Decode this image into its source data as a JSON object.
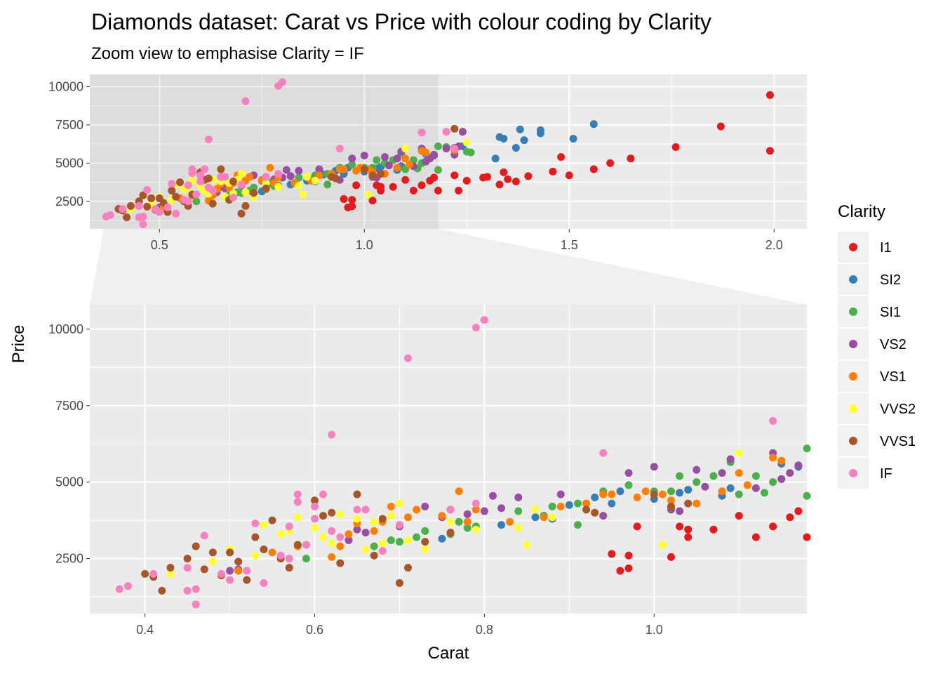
{
  "chart_data": {
    "type": "scatter",
    "title": "Diamonds dataset: Carat vs Price with colour coding by Clarity",
    "subtitle": "Zoom view to emphasise Clarity = IF",
    "xlabel": "Carat",
    "ylabel": "Price",
    "grid": true,
    "legend": {
      "title": "Clarity",
      "position": "right"
    },
    "overview": {
      "xlim": [
        0.33,
        2.08
      ],
      "ylim": [
        700,
        10800
      ],
      "xticks": [
        "0.5",
        "1.0",
        "1.5",
        "2.0"
      ],
      "yticks": [
        "2500",
        "5000",
        "7500",
        "10000"
      ],
      "zoom_region": {
        "x": [
          0.33,
          1.18
        ],
        "y": [
          700,
          10800
        ]
      }
    },
    "zoom": {
      "xlim": [
        0.335,
        1.18
      ],
      "ylim": [
        700,
        10800
      ],
      "xticks": [
        "0.4",
        "0.6",
        "0.8",
        "1.0"
      ],
      "yticks": [
        "2500",
        "5000",
        "7500",
        "10000"
      ]
    },
    "series": [
      {
        "name": "I1",
        "color": "#e41a1c",
        "points": [
          [
            0.95,
            2650
          ],
          [
            0.96,
            2100
          ],
          [
            0.97,
            2600
          ],
          [
            0.98,
            3550
          ],
          [
            0.97,
            2180
          ],
          [
            1.02,
            2550
          ],
          [
            1.03,
            3550
          ],
          [
            1.04,
            3450
          ],
          [
            1.04,
            3200
          ],
          [
            1.07,
            3450
          ],
          [
            1.1,
            3900
          ],
          [
            1.12,
            3200
          ],
          [
            1.14,
            3550
          ],
          [
            1.16,
            3850
          ],
          [
            1.17,
            4050
          ],
          [
            1.18,
            3200
          ],
          [
            1.22,
            4200
          ],
          [
            1.23,
            3200
          ],
          [
            1.25,
            3850
          ],
          [
            1.29,
            4050
          ],
          [
            1.3,
            4100
          ],
          [
            1.33,
            3600
          ],
          [
            1.34,
            4400
          ],
          [
            1.35,
            3950
          ],
          [
            1.37,
            3800
          ],
          [
            1.4,
            4150
          ],
          [
            1.46,
            4450
          ],
          [
            1.48,
            5400
          ],
          [
            1.5,
            4200
          ],
          [
            1.56,
            4600
          ],
          [
            1.6,
            5000
          ],
          [
            1.65,
            5300
          ],
          [
            1.76,
            6050
          ],
          [
            1.87,
            7400
          ],
          [
            1.99,
            9450
          ],
          [
            1.99,
            5800
          ]
        ]
      },
      {
        "name": "SI2",
        "color": "#377eb8",
        "points": [
          [
            0.75,
            3150
          ],
          [
            0.82,
            3600
          ],
          [
            0.86,
            3850
          ],
          [
            0.87,
            3900
          ],
          [
            0.88,
            3800
          ],
          [
            0.9,
            4250
          ],
          [
            0.92,
            4300
          ],
          [
            0.93,
            4500
          ],
          [
            0.95,
            4300
          ],
          [
            0.96,
            4700
          ],
          [
            1.0,
            4450
          ],
          [
            1.02,
            4200
          ],
          [
            1.03,
            4650
          ],
          [
            1.04,
            4750
          ],
          [
            1.08,
            4550
          ],
          [
            1.09,
            4800
          ],
          [
            1.15,
            5600
          ],
          [
            1.17,
            5500
          ],
          [
            1.22,
            6000
          ],
          [
            1.24,
            6100
          ],
          [
            1.32,
            5300
          ],
          [
            1.33,
            6700
          ],
          [
            1.34,
            6600
          ],
          [
            1.37,
            6000
          ],
          [
            1.38,
            7200
          ],
          [
            1.39,
            6500
          ],
          [
            1.43,
            7150
          ],
          [
            1.43,
            6950
          ],
          [
            1.51,
            6600
          ],
          [
            1.56,
            7550
          ]
        ]
      },
      {
        "name": "SI1",
        "color": "#4daf4a",
        "points": [
          [
            0.59,
            2500
          ],
          [
            0.67,
            2900
          ],
          [
            0.69,
            3100
          ],
          [
            0.7,
            3050
          ],
          [
            0.72,
            3200
          ],
          [
            0.73,
            3400
          ],
          [
            0.76,
            3300
          ],
          [
            0.77,
            3700
          ],
          [
            0.78,
            3500
          ],
          [
            0.79,
            3550
          ],
          [
            0.84,
            4050
          ],
          [
            0.87,
            3900
          ],
          [
            0.88,
            4200
          ],
          [
            0.91,
            3600
          ],
          [
            0.91,
            4300
          ],
          [
            0.94,
            4700
          ],
          [
            0.97,
            4900
          ],
          [
            1.0,
            4700
          ],
          [
            1.02,
            4700
          ],
          [
            1.03,
            5200
          ],
          [
            1.05,
            5000
          ],
          [
            1.07,
            5200
          ],
          [
            1.09,
            5650
          ],
          [
            1.1,
            4600
          ],
          [
            1.12,
            5200
          ],
          [
            1.13,
            4650
          ],
          [
            1.14,
            5000
          ],
          [
            1.15,
            5100
          ],
          [
            1.18,
            6100
          ],
          [
            1.18,
            4550
          ],
          [
            1.2,
            6050
          ],
          [
            1.25,
            5750
          ],
          [
            1.26,
            5700
          ]
        ]
      },
      {
        "name": "VS2",
        "color": "#984ea3",
        "points": [
          [
            0.5,
            2100
          ],
          [
            0.51,
            2150
          ],
          [
            0.64,
            3100
          ],
          [
            0.65,
            3450
          ],
          [
            0.66,
            3350
          ],
          [
            0.7,
            3550
          ],
          [
            0.73,
            4200
          ],
          [
            0.75,
            3850
          ],
          [
            0.76,
            4100
          ],
          [
            0.78,
            3950
          ],
          [
            0.8,
            4050
          ],
          [
            0.81,
            4550
          ],
          [
            0.82,
            4150
          ],
          [
            0.84,
            4500
          ],
          [
            0.89,
            4600
          ],
          [
            0.94,
            3900
          ],
          [
            0.97,
            5300
          ],
          [
            1.0,
            5500
          ],
          [
            1.02,
            4100
          ],
          [
            1.03,
            4050
          ],
          [
            1.05,
            5400
          ],
          [
            1.06,
            4850
          ],
          [
            1.08,
            5300
          ],
          [
            1.09,
            5750
          ],
          [
            1.12,
            4800
          ],
          [
            1.14,
            5950
          ],
          [
            1.15,
            5100
          ],
          [
            1.16,
            5300
          ],
          [
            1.17,
            5550
          ],
          [
            1.2,
            5950
          ],
          [
            1.22,
            5550
          ],
          [
            1.23,
            6100
          ],
          [
            1.24,
            7050
          ]
        ]
      },
      {
        "name": "VS1",
        "color": "#ff7f00",
        "points": [
          [
            0.51,
            2100
          ],
          [
            0.55,
            2700
          ],
          [
            0.58,
            2900
          ],
          [
            0.62,
            2550
          ],
          [
            0.63,
            2900
          ],
          [
            0.64,
            3300
          ],
          [
            0.65,
            3650
          ],
          [
            0.67,
            3400
          ],
          [
            0.68,
            3700
          ],
          [
            0.69,
            4200
          ],
          [
            0.71,
            3850
          ],
          [
            0.72,
            4100
          ],
          [
            0.75,
            3900
          ],
          [
            0.77,
            4700
          ],
          [
            0.78,
            3700
          ],
          [
            0.79,
            4100
          ],
          [
            0.83,
            3700
          ],
          [
            0.87,
            3850
          ],
          [
            0.89,
            4200
          ],
          [
            0.92,
            4300
          ],
          [
            0.94,
            4600
          ],
          [
            0.95,
            4600
          ],
          [
            0.98,
            4500
          ],
          [
            0.99,
            4700
          ],
          [
            1.01,
            4600
          ],
          [
            1.02,
            4400
          ],
          [
            1.05,
            4300
          ],
          [
            1.08,
            4700
          ],
          [
            1.1,
            5300
          ],
          [
            1.11,
            4900
          ],
          [
            1.14,
            5800
          ],
          [
            1.15,
            5700
          ],
          [
            1.22,
            5850
          ]
        ]
      },
      {
        "name": "VVS2",
        "color": "#ffff33",
        "points": [
          [
            0.43,
            2000
          ],
          [
            0.48,
            2400
          ],
          [
            0.5,
            2800
          ],
          [
            0.53,
            2600
          ],
          [
            0.54,
            3600
          ],
          [
            0.56,
            3300
          ],
          [
            0.57,
            3400
          ],
          [
            0.58,
            3850
          ],
          [
            0.6,
            3500
          ],
          [
            0.61,
            3200
          ],
          [
            0.62,
            3000
          ],
          [
            0.63,
            3950
          ],
          [
            0.65,
            3800
          ],
          [
            0.66,
            2800
          ],
          [
            0.67,
            3700
          ],
          [
            0.68,
            3000
          ],
          [
            0.69,
            3900
          ],
          [
            0.7,
            4300
          ],
          [
            0.71,
            3100
          ],
          [
            0.73,
            2800
          ],
          [
            0.76,
            3700
          ],
          [
            0.79,
            3450
          ],
          [
            0.84,
            3500
          ],
          [
            0.85,
            2950
          ],
          [
            0.86,
            4100
          ],
          [
            0.88,
            3850
          ],
          [
            1.01,
            2950
          ],
          [
            1.1,
            5950
          ],
          [
            1.25,
            6350
          ]
        ]
      },
      {
        "name": "VVS1",
        "color": "#a65628",
        "points": [
          [
            0.4,
            2000
          ],
          [
            0.41,
            1900
          ],
          [
            0.42,
            1450
          ],
          [
            0.43,
            2200
          ],
          [
            0.45,
            2500
          ],
          [
            0.46,
            2900
          ],
          [
            0.47,
            2150
          ],
          [
            0.48,
            2700
          ],
          [
            0.49,
            1950
          ],
          [
            0.5,
            2700
          ],
          [
            0.51,
            2400
          ],
          [
            0.52,
            1800
          ],
          [
            0.53,
            3200
          ],
          [
            0.54,
            2800
          ],
          [
            0.55,
            3750
          ],
          [
            0.56,
            2500
          ],
          [
            0.57,
            2200
          ],
          [
            0.58,
            2950
          ],
          [
            0.6,
            4400
          ],
          [
            0.61,
            3900
          ],
          [
            0.62,
            4000
          ],
          [
            0.63,
            2350
          ],
          [
            0.65,
            4600
          ],
          [
            0.67,
            2600
          ],
          [
            0.68,
            3800
          ],
          [
            0.7,
            1700
          ],
          [
            0.71,
            2200
          ],
          [
            0.73,
            3050
          ],
          [
            0.76,
            3350
          ],
          [
            0.92,
            4100
          ],
          [
            0.93,
            4000
          ],
          [
            1.0,
            4600
          ],
          [
            1.02,
            4200
          ],
          [
            1.04,
            4300
          ],
          [
            1.22,
            7250
          ]
        ]
      },
      {
        "name": "IF",
        "color": "#f781bf",
        "points": [
          [
            0.37,
            1500
          ],
          [
            0.38,
            1600
          ],
          [
            0.41,
            2000
          ],
          [
            0.45,
            1450
          ],
          [
            0.45,
            2200
          ],
          [
            0.46,
            1000
          ],
          [
            0.46,
            1500
          ],
          [
            0.47,
            3250
          ],
          [
            0.49,
            2000
          ],
          [
            0.5,
            1800
          ],
          [
            0.52,
            2100
          ],
          [
            0.53,
            3650
          ],
          [
            0.54,
            1700
          ],
          [
            0.56,
            2600
          ],
          [
            0.57,
            2500
          ],
          [
            0.57,
            3550
          ],
          [
            0.58,
            4600
          ],
          [
            0.58,
            4350
          ],
          [
            0.59,
            2950
          ],
          [
            0.6,
            4200
          ],
          [
            0.6,
            3800
          ],
          [
            0.61,
            4600
          ],
          [
            0.62,
            3400
          ],
          [
            0.63,
            3200
          ],
          [
            0.65,
            4100
          ],
          [
            0.66,
            4100
          ],
          [
            0.68,
            2750
          ],
          [
            0.7,
            3600
          ],
          [
            0.76,
            4100
          ],
          [
            0.79,
            4300
          ],
          [
            0.79,
            10050
          ],
          [
            0.8,
            10300
          ],
          [
            0.71,
            9050
          ],
          [
            0.62,
            6550
          ],
          [
            0.94,
            5950
          ],
          [
            1.14,
            7000
          ],
          [
            1.2,
            7050
          ],
          [
            1.22,
            5950
          ]
        ]
      }
    ]
  }
}
